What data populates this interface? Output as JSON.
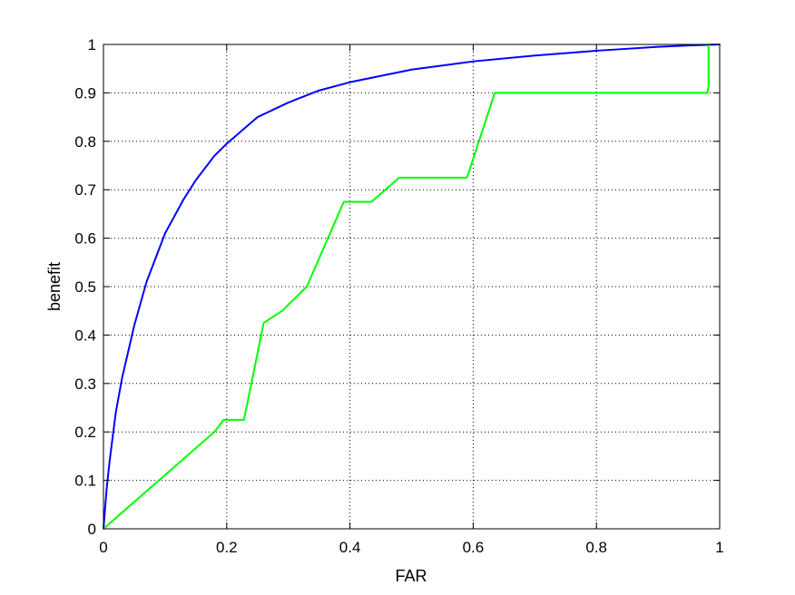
{
  "chart_data": {
    "type": "line",
    "title": "",
    "xlabel": "FAR",
    "ylabel": "benefit",
    "xlim": [
      0,
      1
    ],
    "ylim": [
      0,
      1
    ],
    "grid": true,
    "legend": "none",
    "xticks": [
      0,
      0.2,
      0.4,
      0.6,
      0.8,
      1
    ],
    "xtick_labels": [
      "0",
      "0.2",
      "0.4",
      "0.6",
      "0.8",
      "1"
    ],
    "yticks": [
      0,
      0.1,
      0.2,
      0.3,
      0.4,
      0.5,
      0.6,
      0.7,
      0.8,
      0.9,
      1
    ],
    "ytick_labels": [
      "0",
      "0.1",
      "0.2",
      "0.3",
      "0.4",
      "0.5",
      "0.6",
      "0.7",
      "0.8",
      "0.9",
      "1"
    ],
    "series": [
      {
        "color": "#0000ff",
        "x": [
          0,
          0.005,
          0.01,
          0.02,
          0.03,
          0.05,
          0.07,
          0.1,
          0.13,
          0.15,
          0.18,
          0.2,
          0.25,
          0.3,
          0.35,
          0.4,
          0.5,
          0.6,
          0.7,
          0.8,
          0.9,
          0.95,
          1.0
        ],
        "y": [
          0,
          0.08,
          0.14,
          0.24,
          0.31,
          0.42,
          0.51,
          0.61,
          0.68,
          0.72,
          0.77,
          0.795,
          0.85,
          0.88,
          0.905,
          0.922,
          0.948,
          0.965,
          0.977,
          0.987,
          0.995,
          0.998,
          1.0
        ]
      },
      {
        "color": "#00ff00",
        "x": [
          0,
          0.18,
          0.195,
          0.228,
          0.26,
          0.29,
          0.33,
          0.39,
          0.435,
          0.48,
          0.59,
          0.635,
          0.98,
          0.982,
          0.982
        ],
        "y": [
          0,
          0.2,
          0.225,
          0.225,
          0.425,
          0.45,
          0.5,
          0.675,
          0.675,
          0.725,
          0.725,
          0.9,
          0.9,
          0.915,
          1.0
        ]
      }
    ]
  }
}
